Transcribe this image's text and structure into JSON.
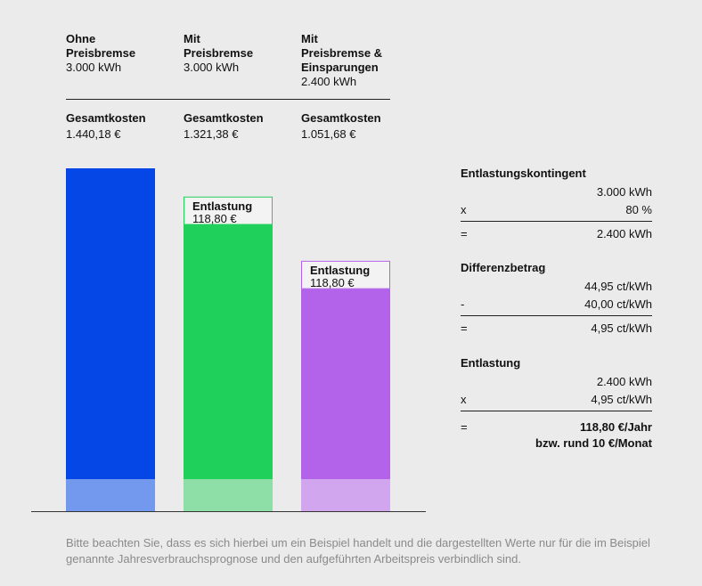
{
  "columns": [
    {
      "name": "Ohne\nPreisbremse",
      "kwh": "3.000 kWh",
      "cost_label": "Gesamtkosten",
      "cost": "1.440,18 €"
    },
    {
      "name": "Mit\nPreisbremse",
      "kwh": "3.000 kWh",
      "cost_label": "Gesamtkosten",
      "cost": "1.321,38 €"
    },
    {
      "name": "Mit\nPreisbremse &\nEinsparungen",
      "kwh": "2.400 kWh",
      "cost_label": "Gesamtkosten",
      "cost": "1.051,68 €"
    }
  ],
  "chart_data": {
    "type": "bar",
    "categories": [
      "Ohne Preisbremse",
      "Mit Preisbremse",
      "Mit Preisbremse & Einsparungen"
    ],
    "values": [
      1440.18,
      1321.38,
      1051.68
    ],
    "relief": [
      0,
      118.8,
      118.8
    ],
    "relief_labels": [
      "",
      "Entlastung\n118,80 €",
      "Entlastung\n118,80 €"
    ],
    "colors": [
      "#0546e6",
      "#1fd15a",
      "#b363ea"
    ],
    "base_colors": [
      "#7399ee",
      "#8ddfa7",
      "#d2a6ee"
    ],
    "title": "",
    "xlabel": "",
    "ylabel": ""
  },
  "calc": {
    "kontingent": {
      "title": "Entlastungskontingent",
      "r1_op": "",
      "r1_val": "3.000 kWh",
      "r2_op": "x",
      "r2_val": "80 %",
      "r3_op": "=",
      "r3_val": "2.400 kWh"
    },
    "differenz": {
      "title": "Differenzbetrag",
      "r1_op": "",
      "r1_val": "44,95 ct/kWh",
      "r2_op": "-",
      "r2_val": "40,00 ct/kWh",
      "r3_op": "=",
      "r3_val": "4,95 ct/kWh"
    },
    "entlastung": {
      "title": "Entlastung",
      "r1_op": "",
      "r1_val": "2.400 kWh",
      "r2_op": "x",
      "r2_val": "4,95 ct/kWh",
      "r3_op": "=",
      "r3_val": "118,80 €/Jahr",
      "r4_val": "bzw. rund 10 €/Monat"
    }
  },
  "footnote": "Bitte beachten Sie, dass es sich hierbei um ein Beispiel handelt und die dargestellten Werte nur für die im Beispiel genannte Jahresverbrauchsprognose und den aufgeführten Arbeitspreis verbindlich sind."
}
